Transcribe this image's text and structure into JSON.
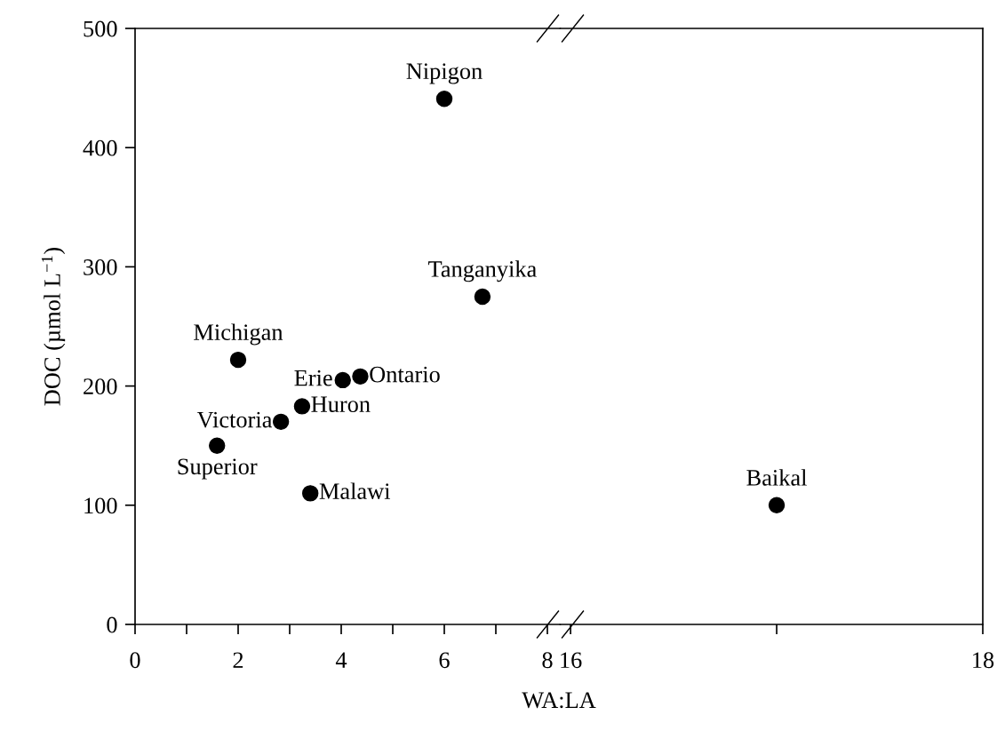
{
  "chart_data": [
    {
      "type": "scatter",
      "xlim": [
        0,
        8.25
      ],
      "xticks": [
        0,
        {
          "value": 1,
          "label": null
        },
        2,
        {
          "value": 3,
          "label": null
        },
        4,
        {
          "value": 5,
          "label": null
        },
        6,
        {
          "value": 7,
          "label": null
        },
        8
      ],
      "ylim": [
        0,
        500
      ],
      "yticks": [
        0,
        100,
        200,
        300,
        400,
        500
      ],
      "xlabel": "WA:LA",
      "ylabel": "DOC (µmol L$^{−1}$)",
      "marker": "circle",
      "series": [
        {
          "color": "#000000",
          "x": [
            6.0,
            6.74,
            2.0,
            4.03,
            4.37,
            3.24,
            2.83,
            1.59,
            3.4
          ],
          "values": [
            441,
            275,
            222,
            205,
            208,
            183,
            170,
            150,
            110
          ]
        }
      ],
      "annotations": [
        {
          "text": "Nipigon",
          "x": 6.0,
          "y": 441
        },
        {
          "text": "Tanganyika",
          "x": 6.74,
          "y": 275
        },
        {
          "text": "Michigan",
          "x": 2.0,
          "y": 222
        },
        {
          "text": "Erie",
          "x": 4.03,
          "y": 205
        },
        {
          "text": "Ontario",
          "x": 4.37,
          "y": 208
        },
        {
          "text": "Huron",
          "x": 3.24,
          "y": 183
        },
        {
          "text": "Victoria",
          "x": 2.83,
          "y": 170
        },
        {
          "text": "Superior",
          "x": 1.59,
          "y": 150
        },
        {
          "text": "Malawi",
          "x": 3.4,
          "y": 110
        }
      ]
    },
    {
      "type": "scatter",
      "xlim": [
        15.95,
        18
      ],
      "xticks": [
        16,
        {
          "value": 17,
          "label": null
        },
        18
      ],
      "ylim": [
        0,
        500
      ],
      "yticks": [
        0,
        100,
        200,
        300,
        400,
        500
      ],
      "tick_labels": "x",
      "marker": "circle",
      "series": [
        {
          "color": "#000000",
          "x": [
            17.0
          ],
          "values": [
            100
          ]
        }
      ],
      "annotations": [
        {
          "text": "Baikal",
          "x": 17.0,
          "y": 100
        }
      ]
    }
  ]
}
